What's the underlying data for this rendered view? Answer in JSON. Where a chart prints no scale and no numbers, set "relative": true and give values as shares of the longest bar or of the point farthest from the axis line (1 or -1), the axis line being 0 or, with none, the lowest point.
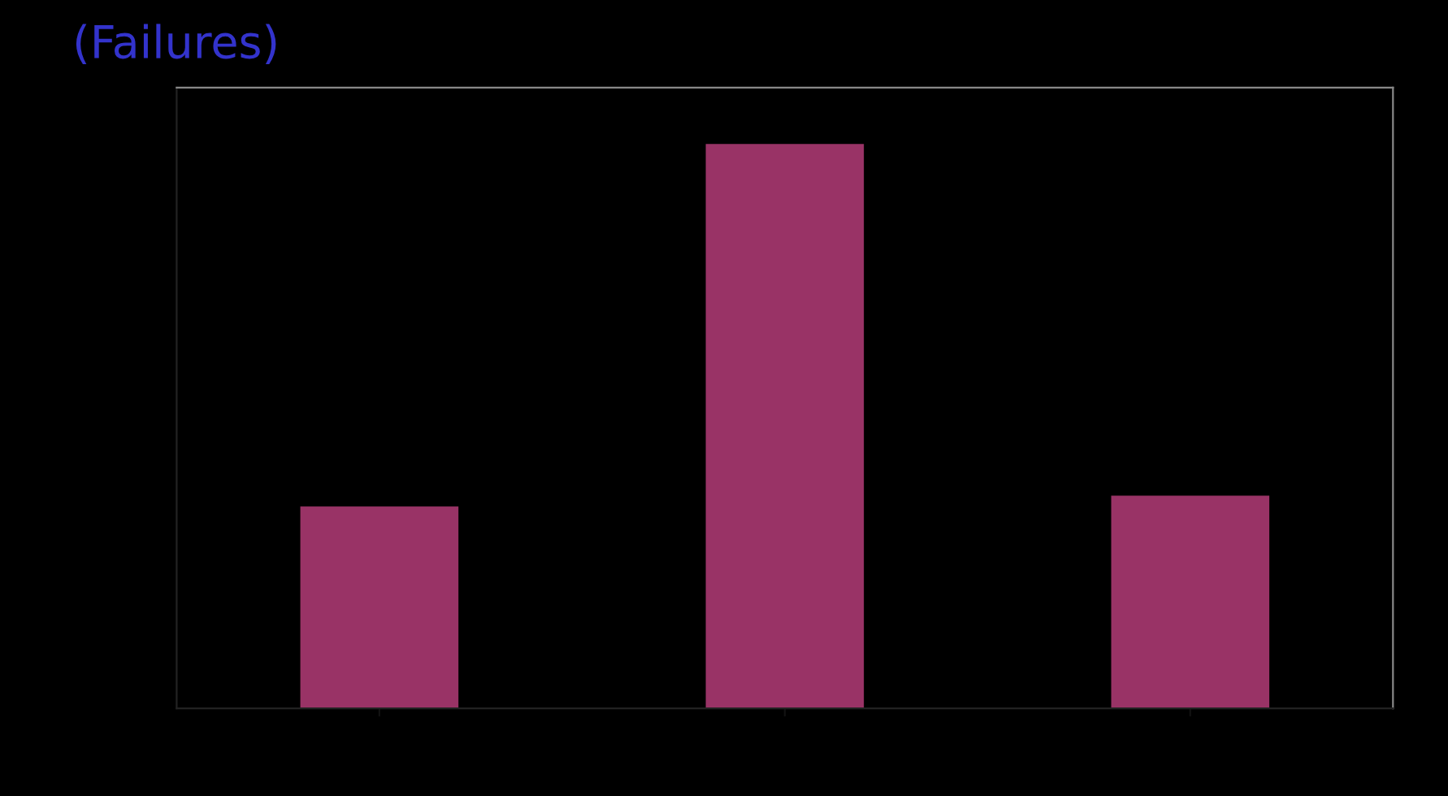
{
  "chart_data": {
    "type": "bar",
    "title": "(Failures)",
    "relative": true,
    "categories": [
      null,
      null,
      null
    ],
    "values": [
      0.358,
      1,
      0.377
    ],
    "color": "#993366",
    "grid": false,
    "legend": false
  }
}
